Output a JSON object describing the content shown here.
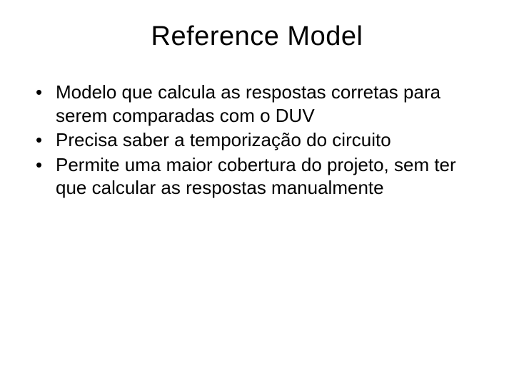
{
  "slide": {
    "title": "Reference Model",
    "title_fontsize": 38,
    "body_fontsize": 26,
    "background_color": "#ffffff",
    "text_color": "#000000",
    "bullets": [
      "Modelo que calcula as respostas corretas para serem comparadas com o DUV",
      "Precisa saber a temporização do circuito",
      "Permite uma maior cobertura do projeto, sem ter que calcular as respostas manualmente"
    ]
  }
}
